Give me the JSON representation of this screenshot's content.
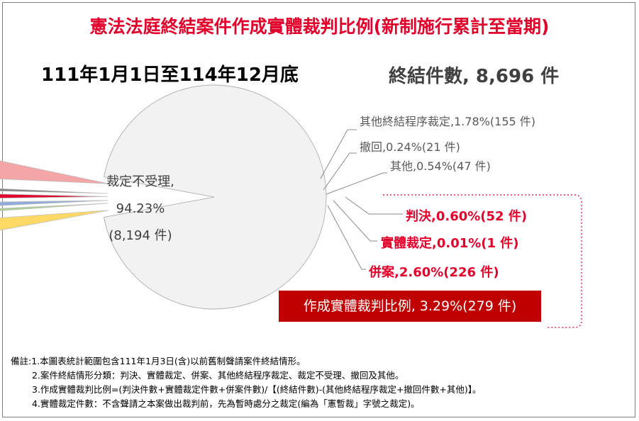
{
  "title": "憲法法庭終結案件作成實體裁判比例(新制施行累計至當期)",
  "period": "111年1月1日至114年12月底",
  "total": "終結件數, 8,696 件",
  "slices": {
    "main": {
      "line1": "裁定不受理,",
      "line2": "94.23%",
      "line3": "(8,194 件)"
    },
    "other_procedure": "其他終結程序裁定,1.78%(155 件)",
    "withdraw": "撤回,0.24%(21 件)",
    "other": "其他,0.54%(47 件)",
    "judgment": "判決,0.60%(52 件)",
    "substantive_ruling": "實體裁定,0.01%(1 件)",
    "merged": "併案,2.60%(226 件)"
  },
  "ratio_label": "作成實體裁判比例, 3.29%(279 件)",
  "notes": [
    "備註:1.本圖表統計範圍包含111年1月3日(含)以前舊制聲請案件終結情形。",
    "2.案件終結情形分類：判決、實體裁定、併案、其他終結程序裁定、裁定不受理、撤回及其他。",
    "3.作成實體裁判比例=(判決件數+實體裁定件數+併案件數)/【(終結件數)-(其他終結程序裁定+撤回件數+其他)】。",
    "4.實體裁定件數：不含聲請之本案做出裁判前，先為暫時處分之裁定(編為「憲暫裁」字號之裁定)。"
  ],
  "chart_data": {
    "type": "pie",
    "title": "憲法法庭終結案件作成實體裁判比例(新制施行累計至當期)",
    "total": 8696,
    "slices": [
      {
        "name": "裁定不受理",
        "value": 8194,
        "percent": 94.23,
        "color": "#f2f2f2",
        "exploded": false
      },
      {
        "name": "其他終結程序裁定",
        "value": 155,
        "percent": 1.78,
        "color": "#ffd966",
        "exploded": true
      },
      {
        "name": "撤回",
        "value": 21,
        "percent": 0.24,
        "color": "#a9d18e",
        "exploded": true
      },
      {
        "name": "其他",
        "value": 47,
        "percent": 0.54,
        "color": "#8faadc",
        "exploded": true
      },
      {
        "name": "判決",
        "value": 52,
        "percent": 0.6,
        "color": "#e0002b",
        "exploded": true
      },
      {
        "name": "實體裁定",
        "value": 1,
        "percent": 0.01,
        "color": "#7f7f7f",
        "exploded": true
      },
      {
        "name": "併案",
        "value": 226,
        "percent": 2.6,
        "color": "#f4a6a6",
        "exploded": true
      }
    ]
  }
}
